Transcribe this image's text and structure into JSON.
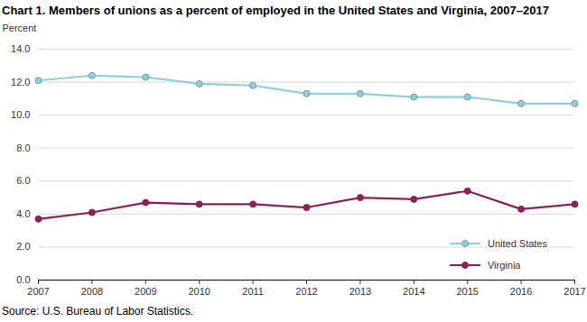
{
  "chart_data": {
    "type": "line",
    "title": "Chart 1. Members of unions as a percent of employed in the United States and Virginia, 2007–2017",
    "y_label": "Percent",
    "source": "Source: U.S. Bureau of Labor Statistics.",
    "x": [
      2007,
      2008,
      2009,
      2010,
      2011,
      2012,
      2013,
      2014,
      2015,
      2016,
      2017
    ],
    "series": [
      {
        "name": "United States",
        "color": "#92cddc",
        "marker": "circle",
        "line_style": "solid",
        "values": [
          12.1,
          12.4,
          12.3,
          11.9,
          11.8,
          11.3,
          11.3,
          11.1,
          11.1,
          10.7,
          10.7
        ]
      },
      {
        "name": "Virginia",
        "color": "#8c2057",
        "marker": "circle",
        "line_style": "solid",
        "values": [
          3.7,
          4.1,
          4.7,
          4.6,
          4.6,
          4.4,
          5.0,
          4.9,
          5.4,
          4.3,
          4.6
        ]
      }
    ],
    "xlim": [
      2007,
      2017
    ],
    "xticks": [
      2007,
      2008,
      2009,
      2010,
      2011,
      2012,
      2013,
      2014,
      2015,
      2016,
      2017
    ],
    "ylim": [
      0,
      14
    ],
    "yticks": [
      {
        "value": 0,
        "label": "0.0"
      },
      {
        "value": 2,
        "label": "2.0"
      },
      {
        "value": 4,
        "label": "4.0"
      },
      {
        "value": 6,
        "label": "6.0"
      },
      {
        "value": 8,
        "label": "8.0"
      },
      {
        "value": 10,
        "label": "10.0"
      },
      {
        "value": 12,
        "label": "12.0"
      },
      {
        "value": 14,
        "label": "14.0"
      }
    ],
    "grid": true,
    "legend": "lower right"
  }
}
